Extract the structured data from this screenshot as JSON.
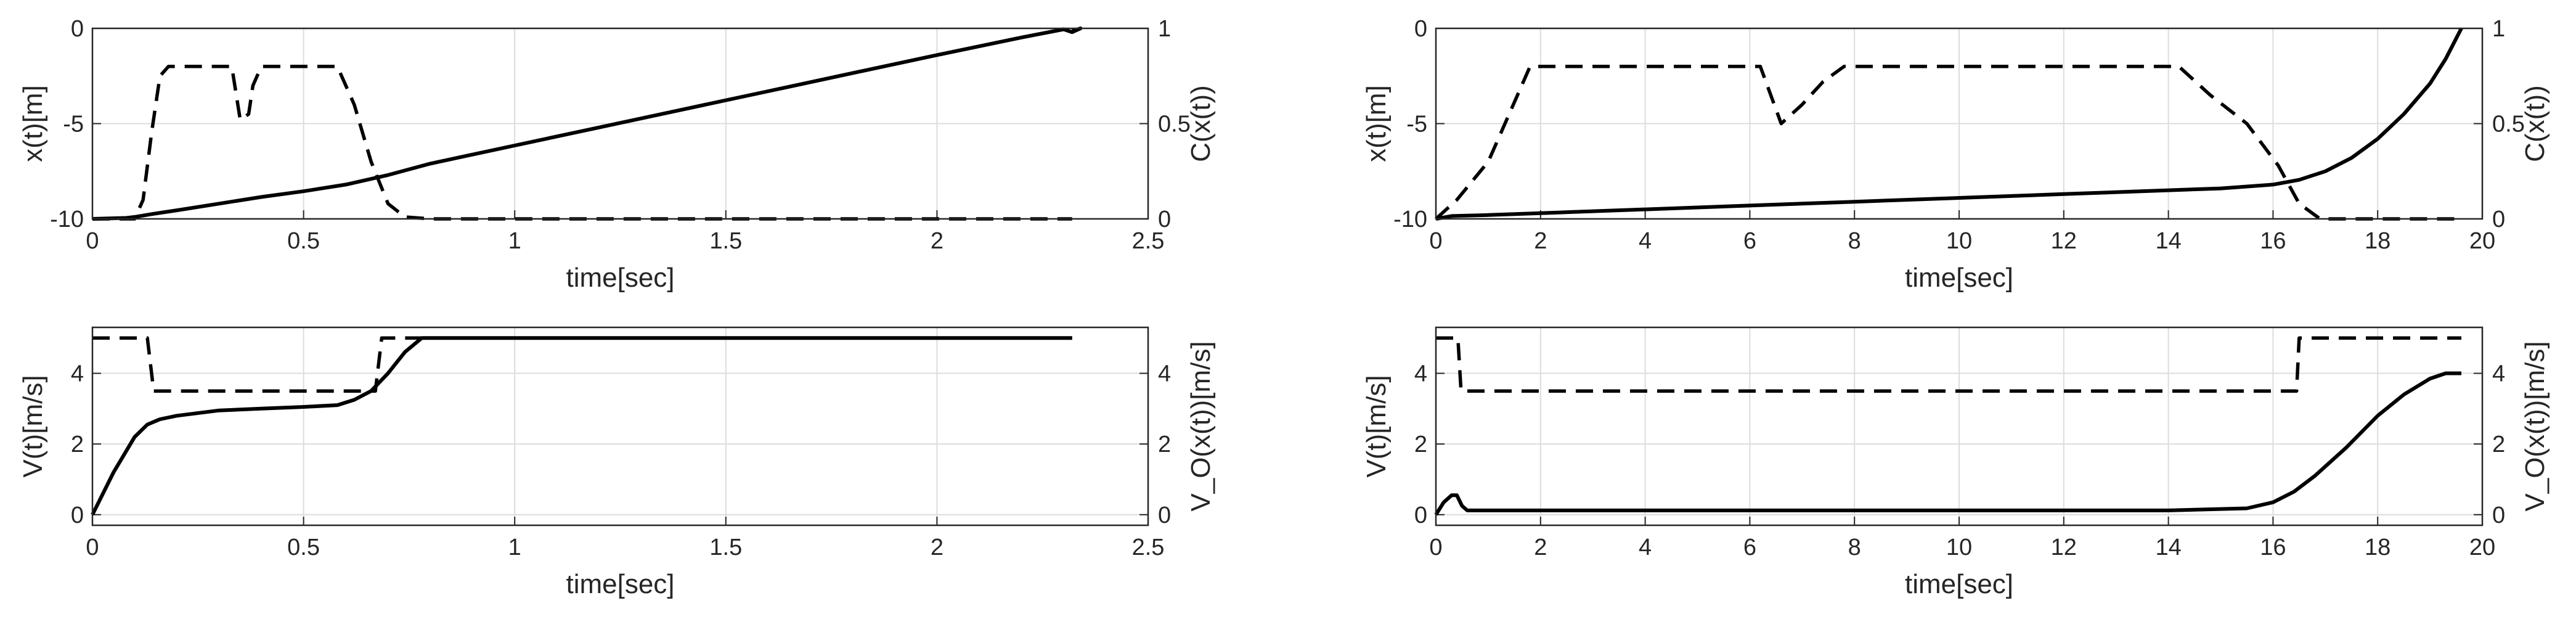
{
  "chart_data": [
    {
      "type": "line",
      "panel": "top-left",
      "xlabel": "time[sec]",
      "ylabel_left": "x(t)[m]",
      "ylabel_right": "C(x(t))",
      "xlim": [
        0,
        2.5
      ],
      "ylim_left": [
        -10,
        0
      ],
      "ylim_right": [
        0,
        1
      ],
      "xticks": [
        "0",
        "0.5",
        "1",
        "1.5",
        "2",
        "2.5"
      ],
      "yticks_left": [
        "-10",
        "-5",
        "0"
      ],
      "yticks_right": [
        "0",
        "0.5",
        "1"
      ],
      "grid": true,
      "series": [
        {
          "axis": "left",
          "style": "solid",
          "x": [
            0,
            0.08,
            0.1,
            0.14,
            0.2,
            0.3,
            0.4,
            0.5,
            0.6,
            0.7,
            0.8,
            1.0,
            1.2,
            1.4,
            1.6,
            1.8,
            2.0,
            2.2,
            2.3,
            2.32,
            2.34,
            2.32
          ],
          "y": [
            -10,
            -9.95,
            -9.9,
            -9.75,
            -9.55,
            -9.2,
            -8.85,
            -8.55,
            -8.2,
            -7.7,
            -7.1,
            -6.15,
            -5.2,
            -4.25,
            -3.3,
            -2.35,
            -1.4,
            -0.48,
            -0.05,
            -0.2,
            0.0,
            -0.15
          ]
        },
        {
          "axis": "right",
          "style": "dashed",
          "x": [
            0,
            0.1,
            0.12,
            0.14,
            0.16,
            0.18,
            0.33,
            0.35,
            0.37,
            0.38,
            0.4,
            0.58,
            0.62,
            0.66,
            0.7,
            0.74,
            0.8,
            2.32
          ],
          "y": [
            0,
            0.0,
            0.1,
            0.45,
            0.75,
            0.8,
            0.8,
            0.52,
            0.55,
            0.7,
            0.8,
            0.8,
            0.6,
            0.3,
            0.08,
            0.01,
            0,
            0
          ]
        }
      ]
    },
    {
      "type": "line",
      "panel": "bottom-left",
      "xlabel": "time[sec]",
      "ylabel_left": "V(t)[m/s]",
      "ylabel_right": "V_O(x(t))[m/s]",
      "xlim": [
        0,
        2.5
      ],
      "ylim_left": [
        -0.3,
        5.3
      ],
      "ylim_right": [
        -0.3,
        5.3
      ],
      "xticks": [
        "0",
        "0.5",
        "1",
        "1.5",
        "2",
        "2.5"
      ],
      "yticks_left": [
        "0",
        "2",
        "4"
      ],
      "yticks_right": [
        "0",
        "2",
        "4"
      ],
      "grid": true,
      "series": [
        {
          "axis": "left",
          "style": "solid",
          "x": [
            0,
            0.05,
            0.1,
            0.13,
            0.16,
            0.2,
            0.3,
            0.4,
            0.5,
            0.58,
            0.62,
            0.66,
            0.7,
            0.74,
            0.78,
            0.8,
            2.32
          ],
          "y": [
            0,
            1.2,
            2.2,
            2.55,
            2.7,
            2.8,
            2.95,
            3.0,
            3.05,
            3.1,
            3.25,
            3.5,
            4.0,
            4.6,
            5.0,
            5.0,
            5.0
          ]
        },
        {
          "axis": "right",
          "style": "dashed",
          "x": [
            0,
            0.13,
            0.145,
            0.67,
            0.685,
            2.32
          ],
          "y": [
            5.0,
            5.0,
            3.5,
            3.5,
            5.0,
            5.0
          ]
        }
      ]
    },
    {
      "type": "line",
      "panel": "top-right",
      "xlabel": "time[sec]",
      "ylabel_left": "x(t)[m]",
      "ylabel_right": "C(x(t))",
      "xlim": [
        0,
        20
      ],
      "ylim_left": [
        -10,
        0
      ],
      "ylim_right": [
        0,
        1
      ],
      "xticks": [
        "0",
        "2",
        "4",
        "6",
        "8",
        "10",
        "12",
        "14",
        "16",
        "18",
        "20"
      ],
      "yticks_left": [
        "-10",
        "-5",
        "0"
      ],
      "yticks_right": [
        "0",
        "0.5",
        "1"
      ],
      "grid": true,
      "series": [
        {
          "axis": "left",
          "style": "solid",
          "x": [
            0,
            0.3,
            1,
            2,
            4,
            6,
            8,
            10,
            12,
            14,
            15,
            16,
            16.5,
            17,
            17.5,
            18,
            18.5,
            19,
            19.3,
            19.6
          ],
          "y": [
            -10,
            -9.85,
            -9.8,
            -9.7,
            -9.5,
            -9.3,
            -9.1,
            -8.9,
            -8.7,
            -8.5,
            -8.4,
            -8.2,
            -7.95,
            -7.5,
            -6.8,
            -5.8,
            -4.5,
            -2.9,
            -1.6,
            0.0
          ]
        },
        {
          "axis": "right",
          "style": "dashed",
          "x": [
            0,
            0.4,
            1.0,
            1.4,
            1.8,
            6.2,
            6.6,
            7.0,
            7.4,
            7.8,
            14.2,
            14.8,
            15.5,
            16.1,
            16.5,
            16.9,
            17.2,
            19.6
          ],
          "y": [
            0,
            0.1,
            0.3,
            0.55,
            0.8,
            0.8,
            0.5,
            0.6,
            0.72,
            0.8,
            0.8,
            0.65,
            0.5,
            0.28,
            0.08,
            0.0,
            0,
            0
          ]
        }
      ]
    },
    {
      "type": "line",
      "panel": "bottom-right",
      "xlabel": "time[sec]",
      "ylabel_left": "V(t)[m/s]",
      "ylabel_right": "V_O(x(t))[m/s]",
      "xlim": [
        0,
        20
      ],
      "ylim_left": [
        -0.3,
        5.3
      ],
      "ylim_right": [
        -0.3,
        5.3
      ],
      "xticks": [
        "0",
        "2",
        "4",
        "6",
        "8",
        "10",
        "12",
        "14",
        "16",
        "18",
        "20"
      ],
      "yticks_left": [
        "0",
        "2",
        "4"
      ],
      "yticks_right": [
        "0",
        "2",
        "4"
      ],
      "grid": true,
      "series": [
        {
          "axis": "left",
          "style": "solid",
          "x": [
            0,
            0.15,
            0.3,
            0.4,
            0.5,
            0.6,
            1.0,
            2,
            6,
            10,
            14,
            15.5,
            16,
            16.4,
            16.8,
            17.4,
            18,
            18.5,
            19,
            19.3,
            19.6
          ],
          "y": [
            0,
            0.35,
            0.55,
            0.55,
            0.25,
            0.12,
            0.12,
            0.12,
            0.12,
            0.12,
            0.12,
            0.18,
            0.35,
            0.65,
            1.1,
            1.9,
            2.8,
            3.4,
            3.85,
            4.0,
            4.0
          ]
        },
        {
          "axis": "right",
          "style": "dashed",
          "x": [
            0,
            0.42,
            0.48,
            16.45,
            16.5,
            19.6
          ],
          "y": [
            5.0,
            5.0,
            3.5,
            3.5,
            5.0,
            5.0
          ]
        }
      ]
    }
  ]
}
